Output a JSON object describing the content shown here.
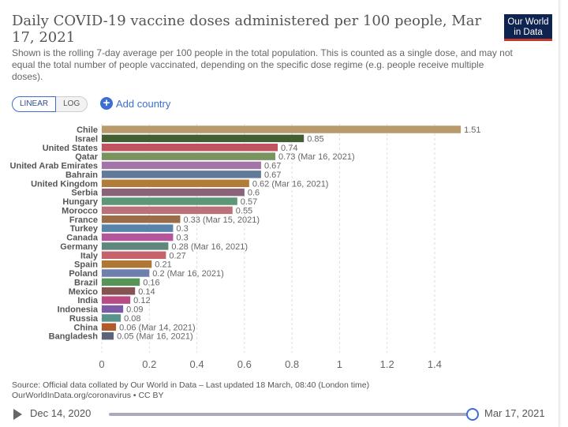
{
  "header": {
    "title": "Daily COVID-19 vaccine doses administered per 100 people, Mar 17, 2021",
    "subtitle": "Shown is the rolling 7-day average per 100 people in the total population. This is counted as a single dose, and may not equal the total number of people vaccinated, depending on the specific dose regime (e.g. people receive multiple doses).",
    "logo": "Our World in Data"
  },
  "controls": {
    "linear": "LINEAR",
    "log": "LOG",
    "add_country": "Add country"
  },
  "footer": {
    "source": "Source: Official data collated by Our World in Data – Last updated 18 March, 08:40 (London time)",
    "link": "OurWorldInData.org/coronavirus • CC BY"
  },
  "timeline": {
    "start": "Dec 14, 2020",
    "end": "Mar 17, 2021",
    "position": 1.0
  },
  "chart_data": {
    "type": "bar",
    "orientation": "horizontal",
    "title": "Daily COVID-19 vaccine doses administered per 100 people, Mar 17, 2021",
    "xlim": [
      0,
      1.51
    ],
    "xticks": [
      0,
      0.2,
      0.4,
      0.6,
      0.8,
      1,
      1.2,
      1.4
    ],
    "xtick_labels": [
      "0",
      "0.2",
      "0.4",
      "0.6",
      "0.8",
      "1",
      "1.2",
      "1.4"
    ],
    "grid": true,
    "bars": [
      {
        "name": "Chile",
        "value": 1.51,
        "label": "1.51",
        "color": "#b89a6c"
      },
      {
        "name": "Israel",
        "value": 0.85,
        "label": "0.85",
        "color": "#435e33"
      },
      {
        "name": "United States",
        "value": 0.74,
        "label": "0.74",
        "color": "#c15361"
      },
      {
        "name": "Qatar",
        "value": 0.73,
        "label": "0.73 (Mar 16, 2021)",
        "color": "#7a9460"
      },
      {
        "name": "United Arab Emirates",
        "value": 0.67,
        "label": "0.67",
        "color": "#a374a8"
      },
      {
        "name": "Bahrain",
        "value": 0.67,
        "label": "0.67",
        "color": "#627a9a"
      },
      {
        "name": "United Kingdom",
        "value": 0.62,
        "label": "0.62 (Mar 16, 2021)",
        "color": "#b07c38"
      },
      {
        "name": "Serbia",
        "value": 0.6,
        "label": "0.6",
        "color": "#8a6279"
      },
      {
        "name": "Hungary",
        "value": 0.57,
        "label": "0.57",
        "color": "#5d9778"
      },
      {
        "name": "Morocco",
        "value": 0.55,
        "label": "0.55",
        "color": "#bb717a"
      },
      {
        "name": "France",
        "value": 0.33,
        "label": "0.33 (Mar 15, 2021)",
        "color": "#9a6c48"
      },
      {
        "name": "Turkey",
        "value": 0.3,
        "label": "0.3",
        "color": "#5883ab"
      },
      {
        "name": "Canada",
        "value": 0.3,
        "label": "0.3",
        "color": "#b5559c"
      },
      {
        "name": "Germany",
        "value": 0.28,
        "label": "0.28 (Mar 16, 2021)",
        "color": "#5f887d"
      },
      {
        "name": "Italy",
        "value": 0.27,
        "label": "0.27",
        "color": "#c5626b"
      },
      {
        "name": "Spain",
        "value": 0.21,
        "label": "0.21",
        "color": "#b07634"
      },
      {
        "name": "Poland",
        "value": 0.2,
        "label": "0.2 (Mar 16, 2021)",
        "color": "#6d7fac"
      },
      {
        "name": "Brazil",
        "value": 0.16,
        "label": "0.16",
        "color": "#569457"
      },
      {
        "name": "Mexico",
        "value": 0.14,
        "label": "0.14",
        "color": "#865353"
      },
      {
        "name": "India",
        "value": 0.12,
        "label": "0.12",
        "color": "#b84b84"
      },
      {
        "name": "Indonesia",
        "value": 0.09,
        "label": "0.09",
        "color": "#7c5ba4"
      },
      {
        "name": "Russia",
        "value": 0.08,
        "label": "0.08",
        "color": "#5a928e"
      },
      {
        "name": "China",
        "value": 0.06,
        "label": "0.06 (Mar 14, 2021)",
        "color": "#b35a2a"
      },
      {
        "name": "Bangladesh",
        "value": 0.05,
        "label": "0.05 (Mar 16, 2021)",
        "color": "#5d6479"
      }
    ]
  }
}
